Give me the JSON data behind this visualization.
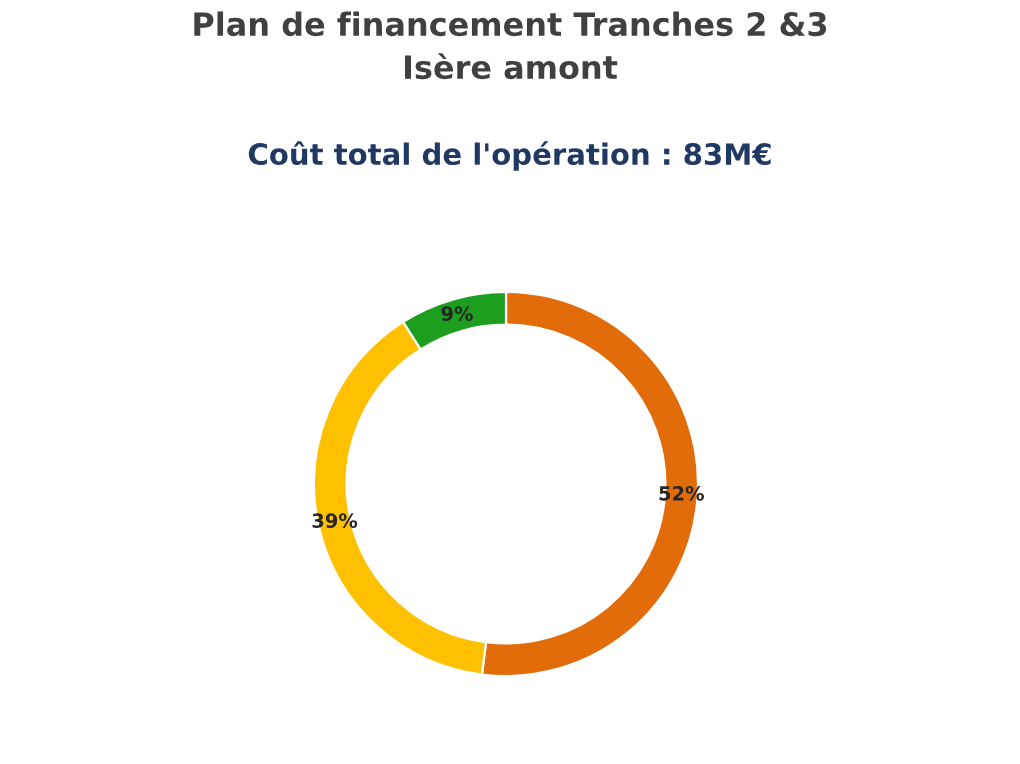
{
  "chart_data": {
    "type": "donut",
    "title": "Plan de financement Tranches 2 &3\nIsère amont",
    "subtitle": "Coût total de l'opération : 83M€",
    "categories": [
      null,
      null,
      null
    ],
    "values": [
      52,
      39,
      9
    ],
    "colors": [
      "#e36c0a",
      "#ffc000",
      "#1e9e1e"
    ],
    "value_labels": [
      "52%",
      "39%",
      "9%"
    ]
  }
}
